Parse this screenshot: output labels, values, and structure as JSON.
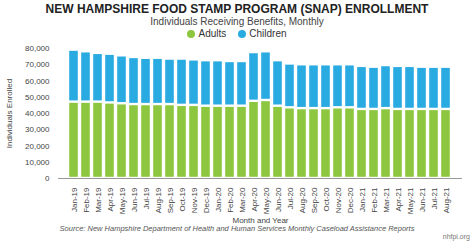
{
  "chart_data": {
    "type": "bar",
    "stacked": true,
    "title": "NEW HAMPSHIRE FOOD STAMP PROGRAM (SNAP) ENROLLMENT",
    "subtitle": "Individuals Receiving Benefits, Monthly",
    "x_label": "Month and Year",
    "y_label": "Individuals Enrolled",
    "caption": "Source: New Hampshire Department of Health and Human Services Monthly Caseload Assistance Reports",
    "note": "nhfpi.org",
    "categories": [
      "Jan-19",
      "Feb-19",
      "Mar-19",
      "Apr-19",
      "May-19",
      "Jun-19",
      "Jul-19",
      "Aug-19",
      "Sep-19",
      "Oct-19",
      "Nov-19",
      "Dec-19",
      "Jan-20",
      "Feb-20",
      "Mar-20",
      "Apr-20",
      "May-20",
      "Jun-20",
      "Jul-20",
      "Aug-20",
      "Sep-20",
      "Oct-20",
      "Nov-20",
      "Dec-20",
      "Jan-21",
      "Feb-21",
      "Mar-21",
      "Apr-21",
      "May-21",
      "Jun-21",
      "Jul-21",
      "Aug-21"
    ],
    "series": [
      {
        "name": "Adults",
        "color": "#8dc63f",
        "values": [
          47000,
          47000,
          47000,
          46500,
          46000,
          45500,
          45500,
          45500,
          45500,
          45000,
          45000,
          44500,
          44500,
          44500,
          44500,
          47500,
          48000,
          44500,
          43500,
          43000,
          43000,
          43000,
          43500,
          43500,
          42500,
          42500,
          43000,
          42500,
          42500,
          42500,
          42500,
          42500
        ]
      },
      {
        "name": "Children",
        "color": "#29abe2",
        "values": [
          32000,
          31000,
          30000,
          30000,
          29500,
          29000,
          28500,
          28500,
          28000,
          28500,
          28000,
          28000,
          28000,
          27500,
          27500,
          30000,
          30000,
          28000,
          27000,
          27000,
          27000,
          27000,
          26500,
          26500,
          26500,
          26000,
          26500,
          26500,
          26500,
          26000,
          26000,
          26000
        ]
      }
    ],
    "ylim": [
      0,
      80000
    ],
    "yticks": [
      0,
      {
        "value": 10000,
        "label": "10,000"
      },
      {
        "value": 20000,
        "label": "20,000"
      },
      {
        "value": 30000,
        "label": "30,000"
      },
      {
        "value": 40000,
        "label": "40,000"
      },
      {
        "value": 50000,
        "label": "50,000"
      },
      {
        "value": 60000,
        "label": "60,000"
      },
      {
        "value": 70000,
        "label": "70,000"
      },
      {
        "value": 80000,
        "label": "80,000"
      }
    ],
    "grid": false,
    "legend": "top"
  }
}
